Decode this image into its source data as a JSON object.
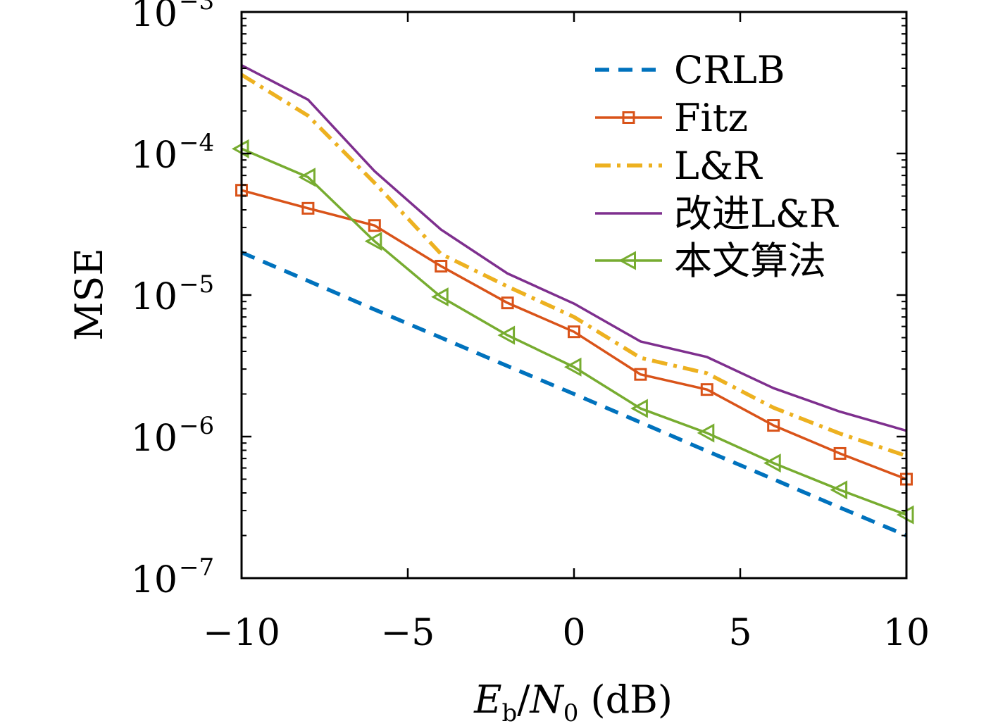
{
  "chart_data": {
    "type": "line",
    "title": "",
    "xlabel": {
      "main": "E",
      "sub1": "b",
      "slash": "/",
      "main2": "N",
      "sub2": "0",
      "unit": " (dB)"
    },
    "ylabel": "MSE",
    "xlim": [
      -10,
      10
    ],
    "ylim": [
      1e-07,
      0.001
    ],
    "yscale": "log",
    "xticks": [
      -10,
      -5,
      0,
      5,
      10
    ],
    "xtick_labels": [
      "−10",
      "−5",
      "0",
      "5",
      "10"
    ],
    "yticks": [
      {
        "value": 0.001,
        "base": "10",
        "exp": "−3"
      },
      {
        "value": 0.0001,
        "base": "10",
        "exp": "−4"
      },
      {
        "value": 1e-05,
        "base": "10",
        "exp": "−5"
      },
      {
        "value": 1e-06,
        "base": "10",
        "exp": "−6"
      },
      {
        "value": 1e-07,
        "base": "10",
        "exp": "−7"
      }
    ],
    "grid": false,
    "legend_position": "top-right",
    "x": [
      -10,
      -8,
      -6,
      -4,
      -2,
      0,
      2,
      4,
      6,
      8,
      10
    ],
    "series": [
      {
        "name": "CRLB",
        "color": "#0072BD",
        "style": "dashed",
        "marker": "none",
        "values": [
          2e-05,
          1.26e-05,
          7.9e-06,
          5e-06,
          3.15e-06,
          2e-06,
          1.26e-06,
          7.9e-07,
          5e-07,
          3.15e-07,
          2e-07
        ]
      },
      {
        "name": "Fitz",
        "color": "#D95319",
        "style": "solid",
        "marker": "square",
        "values": [
          5.5e-05,
          4.1e-05,
          3.1e-05,
          1.6e-05,
          8.8e-06,
          5.5e-06,
          2.75e-06,
          2.15e-06,
          1.2e-06,
          7.6e-07,
          5e-07
        ]
      },
      {
        "name": "L&R",
        "color": "#EDB120",
        "style": "dashdot",
        "marker": "none",
        "values": [
          0.00036,
          0.000185,
          6.2e-05,
          1.95e-05,
          1.15e-05,
          7e-06,
          3.6e-06,
          2.8e-06,
          1.6e-06,
          1.05e-06,
          7.3e-07
        ]
      },
      {
        "name": "改进L&R",
        "color": "#7E2F8E",
        "style": "solid",
        "marker": "none",
        "values": [
          0.00042,
          0.00024,
          7.5e-05,
          2.9e-05,
          1.42e-05,
          8.7e-06,
          4.7e-06,
          3.65e-06,
          2.2e-06,
          1.5e-06,
          1.1e-06
        ]
      },
      {
        "name": "本文算法",
        "color": "#77AC30",
        "style": "solid",
        "marker": "triangle-left",
        "values": [
          0.000108,
          6.8e-05,
          2.4e-05,
          9.7e-06,
          5.2e-06,
          3.1e-06,
          1.58e-06,
          1.06e-06,
          6.5e-07,
          4.2e-07,
          2.8e-07
        ]
      }
    ]
  }
}
